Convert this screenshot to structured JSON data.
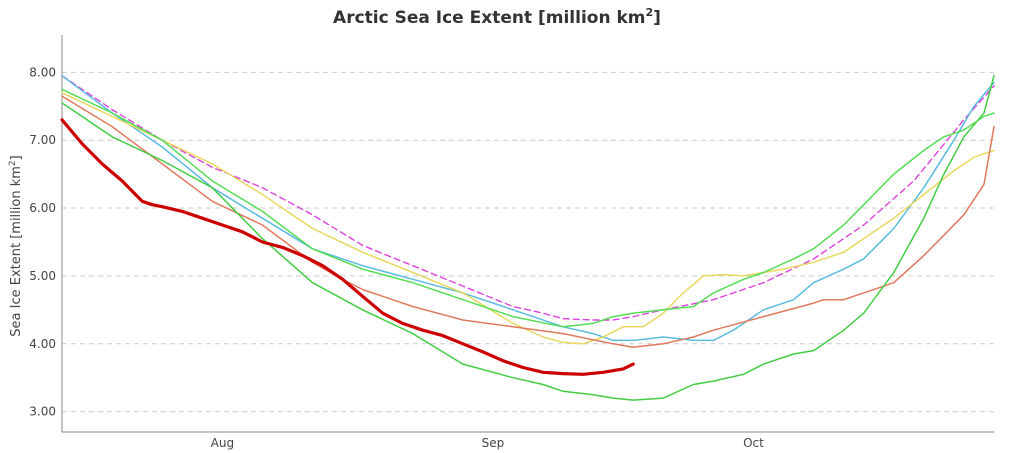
{
  "chart_data": {
    "type": "line",
    "title": "Arctic Sea Ice Extent [million km",
    "title_sup": "2",
    "title_end": "]",
    "ylabel": "Sea Ice Extent [million km",
    "ylabel_sup": "2",
    "ylabel_end": "]",
    "ylim": [
      2.7,
      8.55
    ],
    "xlim": [
      0,
      93
    ],
    "yticks": [
      3.0,
      4.0,
      5.0,
      6.0,
      7.0,
      8.0
    ],
    "ytick_labels": [
      "3.00",
      "4.00",
      "5.00",
      "6.00",
      "7.00",
      "8.00"
    ],
    "xticks": [
      {
        "x": 16,
        "label": "Aug"
      },
      {
        "x": 43,
        "label": "Sep"
      },
      {
        "x": 69,
        "label": "Oct"
      }
    ],
    "grid": true,
    "legend": "none",
    "series": [
      {
        "color": "#dd44dd",
        "dashed": true,
        "width": 1.4,
        "x": [
          0,
          5,
          10,
          15,
          20,
          25,
          30,
          35,
          40,
          45,
          48,
          50,
          53,
          55,
          57,
          60,
          65,
          70,
          75,
          80,
          85,
          90,
          93
        ],
        "y": [
          7.95,
          7.45,
          7.0,
          6.6,
          6.3,
          5.9,
          5.45,
          5.15,
          4.85,
          4.55,
          4.45,
          4.37,
          4.35,
          4.35,
          4.4,
          4.5,
          4.65,
          4.9,
          5.25,
          5.75,
          6.4,
          7.3,
          7.8
        ]
      },
      {
        "color": "#5bbbe0",
        "dashed": false,
        "width": 1.5,
        "x": [
          0,
          5,
          10,
          15,
          20,
          25,
          30,
          35,
          40,
          45,
          50,
          53,
          55,
          57,
          60,
          63,
          65,
          67,
          70,
          73,
          75,
          78,
          80,
          83,
          86,
          89,
          91,
          93
        ],
        "y": [
          7.95,
          7.4,
          6.9,
          6.3,
          5.85,
          5.4,
          5.15,
          4.95,
          4.75,
          4.5,
          4.25,
          4.15,
          4.05,
          4.05,
          4.1,
          4.05,
          4.05,
          4.2,
          4.5,
          4.65,
          4.9,
          5.1,
          5.25,
          5.7,
          6.3,
          7.0,
          7.5,
          7.85
        ]
      },
      {
        "color": "#e8d860",
        "dashed": false,
        "width": 1.5,
        "x": [
          0,
          5,
          10,
          15,
          20,
          25,
          30,
          35,
          40,
          45,
          48,
          50,
          52,
          54,
          56,
          58,
          60,
          62,
          64,
          66,
          68,
          70,
          72,
          75,
          78,
          80,
          83,
          86,
          89,
          91,
          93
        ],
        "y": [
          7.7,
          7.35,
          7.0,
          6.65,
          6.2,
          5.7,
          5.35,
          5.05,
          4.75,
          4.3,
          4.1,
          4.02,
          4.0,
          4.1,
          4.25,
          4.25,
          4.45,
          4.75,
          5.0,
          5.02,
          5.0,
          5.05,
          5.1,
          5.2,
          5.35,
          5.55,
          5.85,
          6.2,
          6.55,
          6.75,
          6.85
        ]
      },
      {
        "color": "#e07a5f",
        "dashed": false,
        "width": 1.5,
        "x": [
          0,
          5,
          10,
          15,
          20,
          25,
          28,
          30,
          35,
          40,
          45,
          50,
          55,
          57,
          60,
          63,
          65,
          70,
          75,
          76,
          78,
          80,
          83,
          86,
          88,
          90,
          92,
          93
        ],
        "y": [
          7.65,
          7.2,
          6.65,
          6.1,
          5.75,
          5.2,
          4.95,
          4.8,
          4.55,
          4.35,
          4.25,
          4.15,
          4.0,
          3.95,
          4.0,
          4.1,
          4.2,
          4.4,
          4.6,
          4.65,
          4.65,
          4.75,
          4.9,
          5.3,
          5.6,
          5.9,
          6.35,
          7.2
        ]
      },
      {
        "color": "#44cc44",
        "dashed": false,
        "width": 1.5,
        "x": [
          0,
          5,
          10,
          15,
          20,
          25,
          30,
          35,
          40,
          45,
          48,
          50,
          53,
          55,
          57,
          60,
          63,
          65,
          68,
          70,
          73,
          75,
          78,
          80,
          83,
          86,
          88,
          90,
          92,
          93
        ],
        "y": [
          7.55,
          7.05,
          6.7,
          6.3,
          5.55,
          4.9,
          4.5,
          4.15,
          3.7,
          3.5,
          3.4,
          3.3,
          3.25,
          3.2,
          3.17,
          3.2,
          3.4,
          3.45,
          3.55,
          3.7,
          3.85,
          3.9,
          4.2,
          4.45,
          5.05,
          5.85,
          6.5,
          7.05,
          7.4,
          7.95
        ]
      },
      {
        "color": "#55dd55",
        "dashed": false,
        "width": 1.5,
        "x": [
          0,
          5,
          10,
          15,
          20,
          25,
          30,
          35,
          40,
          45,
          50,
          53,
          55,
          57,
          60,
          63,
          65,
          68,
          70,
          73,
          75,
          78,
          80,
          83,
          86,
          88,
          90,
          92,
          93
        ],
        "y": [
          7.75,
          7.4,
          7.0,
          6.4,
          5.95,
          5.4,
          5.1,
          4.9,
          4.65,
          4.4,
          4.25,
          4.3,
          4.4,
          4.45,
          4.5,
          4.55,
          4.75,
          4.95,
          5.05,
          5.25,
          5.4,
          5.75,
          6.05,
          6.5,
          6.85,
          7.05,
          7.15,
          7.35,
          7.4
        ]
      },
      {
        "color": "#cc0000",
        "dashed": false,
        "width": 3.2,
        "x": [
          0,
          2,
          4,
          6,
          8,
          9,
          10,
          12,
          14,
          16,
          18,
          20,
          22,
          24,
          26,
          28,
          30,
          32,
          34,
          36,
          38,
          40,
          42,
          44,
          46,
          48,
          50,
          52,
          54,
          56,
          57
        ],
        "y": [
          7.3,
          6.95,
          6.65,
          6.4,
          6.1,
          6.05,
          6.02,
          5.95,
          5.85,
          5.75,
          5.65,
          5.5,
          5.42,
          5.3,
          5.15,
          4.95,
          4.7,
          4.45,
          4.3,
          4.2,
          4.12,
          4.0,
          3.88,
          3.75,
          3.65,
          3.58,
          3.56,
          3.55,
          3.58,
          3.63,
          3.7
        ]
      }
    ]
  }
}
